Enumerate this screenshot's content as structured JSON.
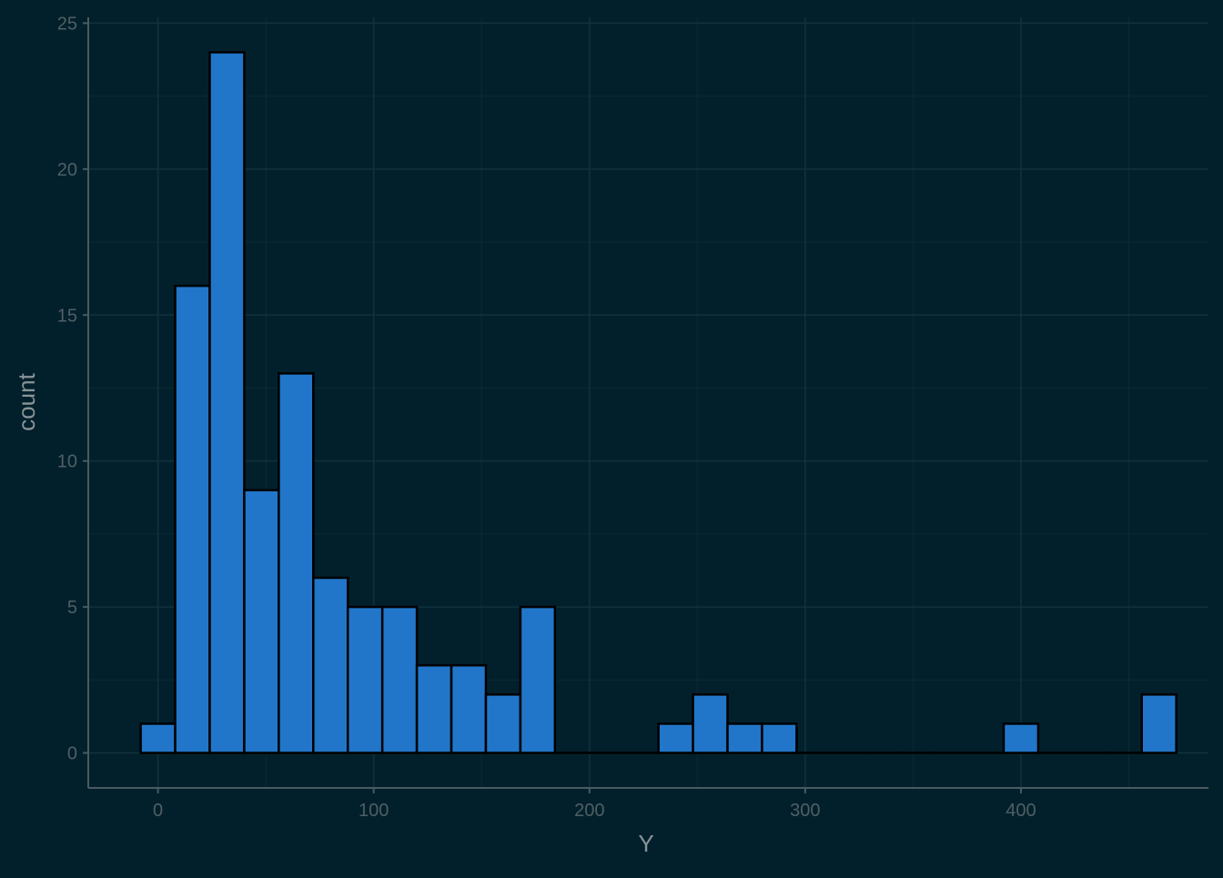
{
  "chart_data": {
    "type": "bar",
    "title": "",
    "xlabel": "Y",
    "ylabel": "count",
    "grid": true,
    "xlim": [
      -32.3,
      486.9
    ],
    "ylim": [
      -1.2,
      25.2
    ],
    "x_ticks": [
      0,
      100,
      200,
      300,
      400
    ],
    "x_tick_labels": [
      "0",
      "100",
      "200",
      "300",
      "400"
    ],
    "y_ticks": [
      0,
      5,
      10,
      15,
      20,
      25
    ],
    "y_tick_labels": [
      "0",
      "5",
      "10",
      "15",
      "20",
      "25"
    ],
    "bin_width": 16.0,
    "bin_centers": [
      0,
      16,
      32,
      48,
      64,
      80,
      96,
      112,
      128,
      144,
      160,
      176,
      192,
      208,
      224,
      240,
      256,
      272,
      288,
      304,
      320,
      336,
      352,
      368,
      384,
      400,
      416,
      432,
      448,
      464
    ],
    "values": [
      1,
      16,
      24,
      9,
      13,
      6,
      5,
      5,
      3,
      3,
      2,
      5,
      0,
      0,
      0,
      1,
      2,
      1,
      1,
      0,
      0,
      0,
      0,
      0,
      0,
      1,
      0,
      0,
      0,
      2
    ]
  },
  "colors": {
    "background": "#02202b",
    "bar_fill": "#2176c9",
    "bar_stroke": "#000000",
    "grid_major": "#10323d",
    "grid_minor": "#0a2a35",
    "axis_line": "#495a61",
    "tick_label": "#4f5f66",
    "axis_title": "#889499"
  }
}
